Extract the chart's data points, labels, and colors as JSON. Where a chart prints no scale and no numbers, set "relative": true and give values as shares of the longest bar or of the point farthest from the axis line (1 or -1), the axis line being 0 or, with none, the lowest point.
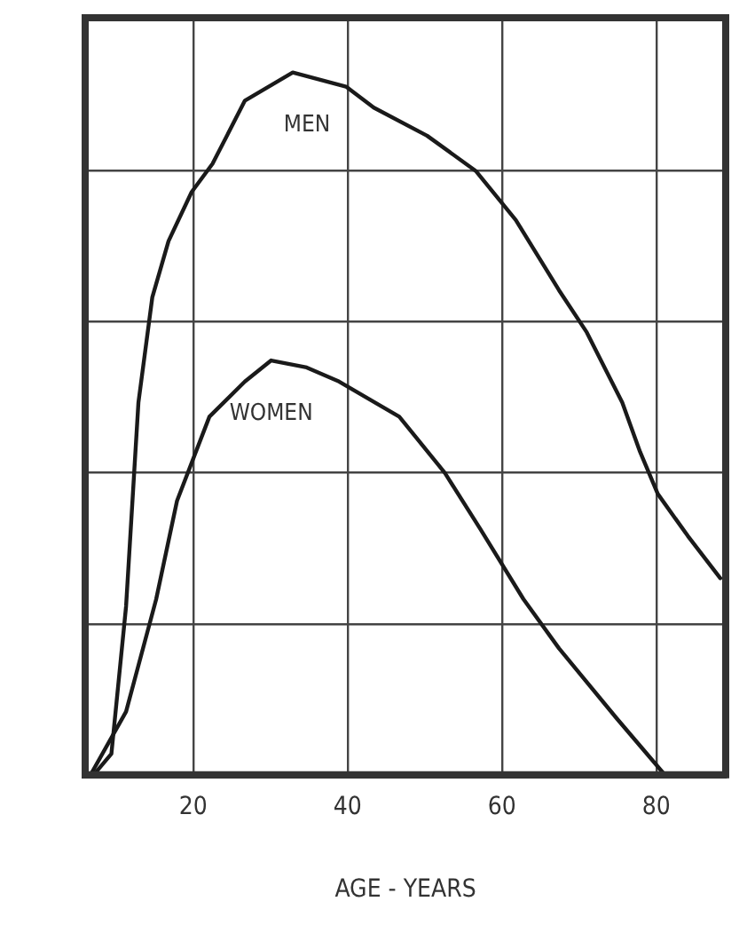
{
  "chart_data": {
    "type": "line",
    "relative": true,
    "xlabel": "AGE - YEARS",
    "xlim": [
      6,
      89
    ],
    "xticks": [
      20,
      40,
      60,
      80
    ],
    "grid": true,
    "legend": false,
    "marker": "none",
    "line_style": "solid",
    "series": [
      {
        "name": "MEN",
        "color": "#1a1a1a",
        "x": [
          7.1,
          9.4,
          11.3,
          12.9,
          14.7,
          16.8,
          19.8,
          22.5,
          26.7,
          32.9,
          39.8,
          43.4,
          50.3,
          56.6,
          61.8,
          67.4,
          71.0,
          75.6,
          77.9,
          80.2,
          84.1,
          88.3
        ],
        "values": [
          0,
          0.03,
          0.24,
          0.53,
          0.68,
          0.76,
          0.83,
          0.87,
          0.96,
          1.0,
          0.98,
          0.95,
          0.91,
          0.86,
          0.79,
          0.69,
          0.63,
          0.53,
          0.46,
          0.4,
          0.34,
          0.28
        ]
      },
      {
        "name": "WOMEN",
        "color": "#1a1a1a",
        "x": [
          6.7,
          11.3,
          15.2,
          17.9,
          22.1,
          26.7,
          30.1,
          34.7,
          38.9,
          46.7,
          52.6,
          57.2,
          62.8,
          67.4,
          74.9,
          81.1
        ],
        "values": [
          0,
          0.09,
          0.25,
          0.39,
          0.51,
          0.56,
          0.59,
          0.58,
          0.56,
          0.51,
          0.43,
          0.35,
          0.25,
          0.18,
          0.08,
          0
        ]
      }
    ]
  }
}
